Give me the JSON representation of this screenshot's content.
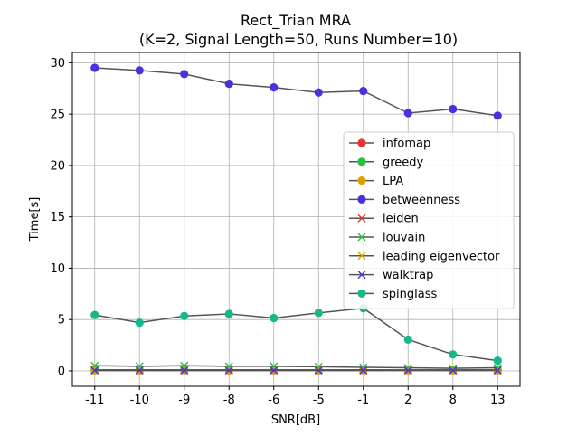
{
  "chart_data": {
    "type": "line",
    "title": "Rect_Trian MRA",
    "subtitle": "(K=2, Signal Length=50, Runs Number=10)",
    "xlabel": "SNR[dB]",
    "ylabel": "Time[s]",
    "categories": [
      "-11",
      "-10",
      "-9",
      "-8",
      "-6",
      "-5",
      "-1",
      "2",
      "8",
      "13"
    ],
    "ylim": [
      -1.5,
      31.0
    ],
    "yticks": [
      0,
      5,
      10,
      15,
      20,
      25,
      30
    ],
    "grid": true,
    "legend_position": "center-right",
    "line_color": "#555555",
    "series": [
      {
        "name": "infomap",
        "marker": "o",
        "color": "#e8352e",
        "values": [
          0.05,
          0.05,
          0.05,
          0.05,
          0.05,
          0.05,
          0.05,
          0.05,
          0.05,
          0.05
        ]
      },
      {
        "name": "greedy",
        "marker": "o",
        "color": "#1fc63c",
        "values": [
          0.1,
          0.1,
          0.1,
          0.1,
          0.1,
          0.1,
          0.1,
          0.1,
          0.1,
          0.1
        ]
      },
      {
        "name": "LPA",
        "marker": "o",
        "color": "#d9a300",
        "values": [
          0.05,
          0.05,
          0.05,
          0.05,
          0.05,
          0.05,
          0.05,
          0.05,
          0.05,
          0.05
        ]
      },
      {
        "name": "betweenness",
        "marker": "o",
        "color": "#4f2ee0",
        "values": [
          29.5,
          29.25,
          28.9,
          27.95,
          27.6,
          27.1,
          27.25,
          25.1,
          25.5,
          24.85
        ]
      },
      {
        "name": "leiden",
        "marker": "x",
        "color": "#e8352e",
        "values": [
          0.05,
          0.05,
          0.05,
          0.05,
          0.05,
          0.05,
          0.05,
          0.05,
          0.05,
          0.05
        ]
      },
      {
        "name": "louvain",
        "marker": "x",
        "color": "#1fc63c",
        "values": [
          0.5,
          0.45,
          0.5,
          0.45,
          0.45,
          0.4,
          0.35,
          0.3,
          0.25,
          0.3
        ]
      },
      {
        "name": "leading eigenvector",
        "marker": "x",
        "color": "#d9a300",
        "values": [
          0.1,
          0.1,
          0.1,
          0.1,
          0.1,
          0.1,
          0.1,
          0.1,
          0.1,
          0.1
        ]
      },
      {
        "name": "walktrap",
        "marker": "x",
        "color": "#4f2ee0",
        "values": [
          0.05,
          0.05,
          0.05,
          0.05,
          0.05,
          0.05,
          0.05,
          0.05,
          0.05,
          0.05
        ]
      },
      {
        "name": "spinglass",
        "marker": "o",
        "color": "#14b88a",
        "values": [
          5.45,
          4.7,
          5.35,
          5.55,
          5.15,
          5.65,
          6.1,
          3.05,
          1.6,
          1.0
        ]
      }
    ]
  }
}
